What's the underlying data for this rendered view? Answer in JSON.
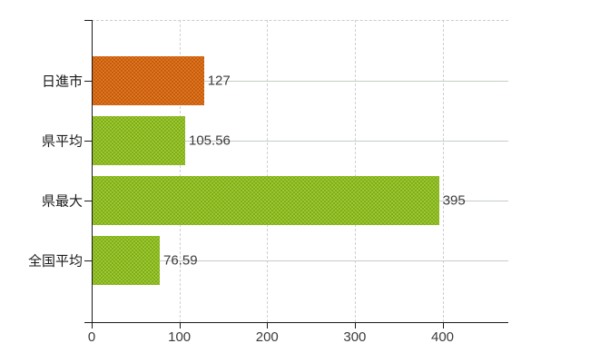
{
  "chart_data": {
    "type": "bar",
    "orientation": "horizontal",
    "title": "",
    "categories": [
      "日進市",
      "県平均",
      "県最大",
      "全国平均"
    ],
    "values": [
      127,
      105.56,
      395,
      76.59
    ],
    "value_labels": [
      "127",
      "105.56",
      "395",
      "76.59"
    ],
    "bar_colors": [
      "#e0751f",
      "#9cc72e",
      "#9cc72e",
      "#9cc72e"
    ],
    "bar_dot_colors": [
      "#c25a0e",
      "#7dab1d",
      "#7dab1d",
      "#7dab1d"
    ],
    "x_ticks": [
      "0",
      "100",
      "200",
      "300",
      "400"
    ],
    "x_tick_values": [
      0,
      100,
      200,
      300,
      400
    ],
    "xlim": [
      0,
      475
    ],
    "grid": true,
    "legend": false
  },
  "colors": {
    "background": "#ffffff",
    "axis": "#1a1a1a",
    "grid_vertical": "#cfcfd6",
    "grid_horizontal": "#c6cdc6",
    "plot_top_border": "#cccccc",
    "category_label": "#1a1a1a",
    "value_label": "#3b3b3b",
    "tick_label": "#3b3b3b"
  }
}
